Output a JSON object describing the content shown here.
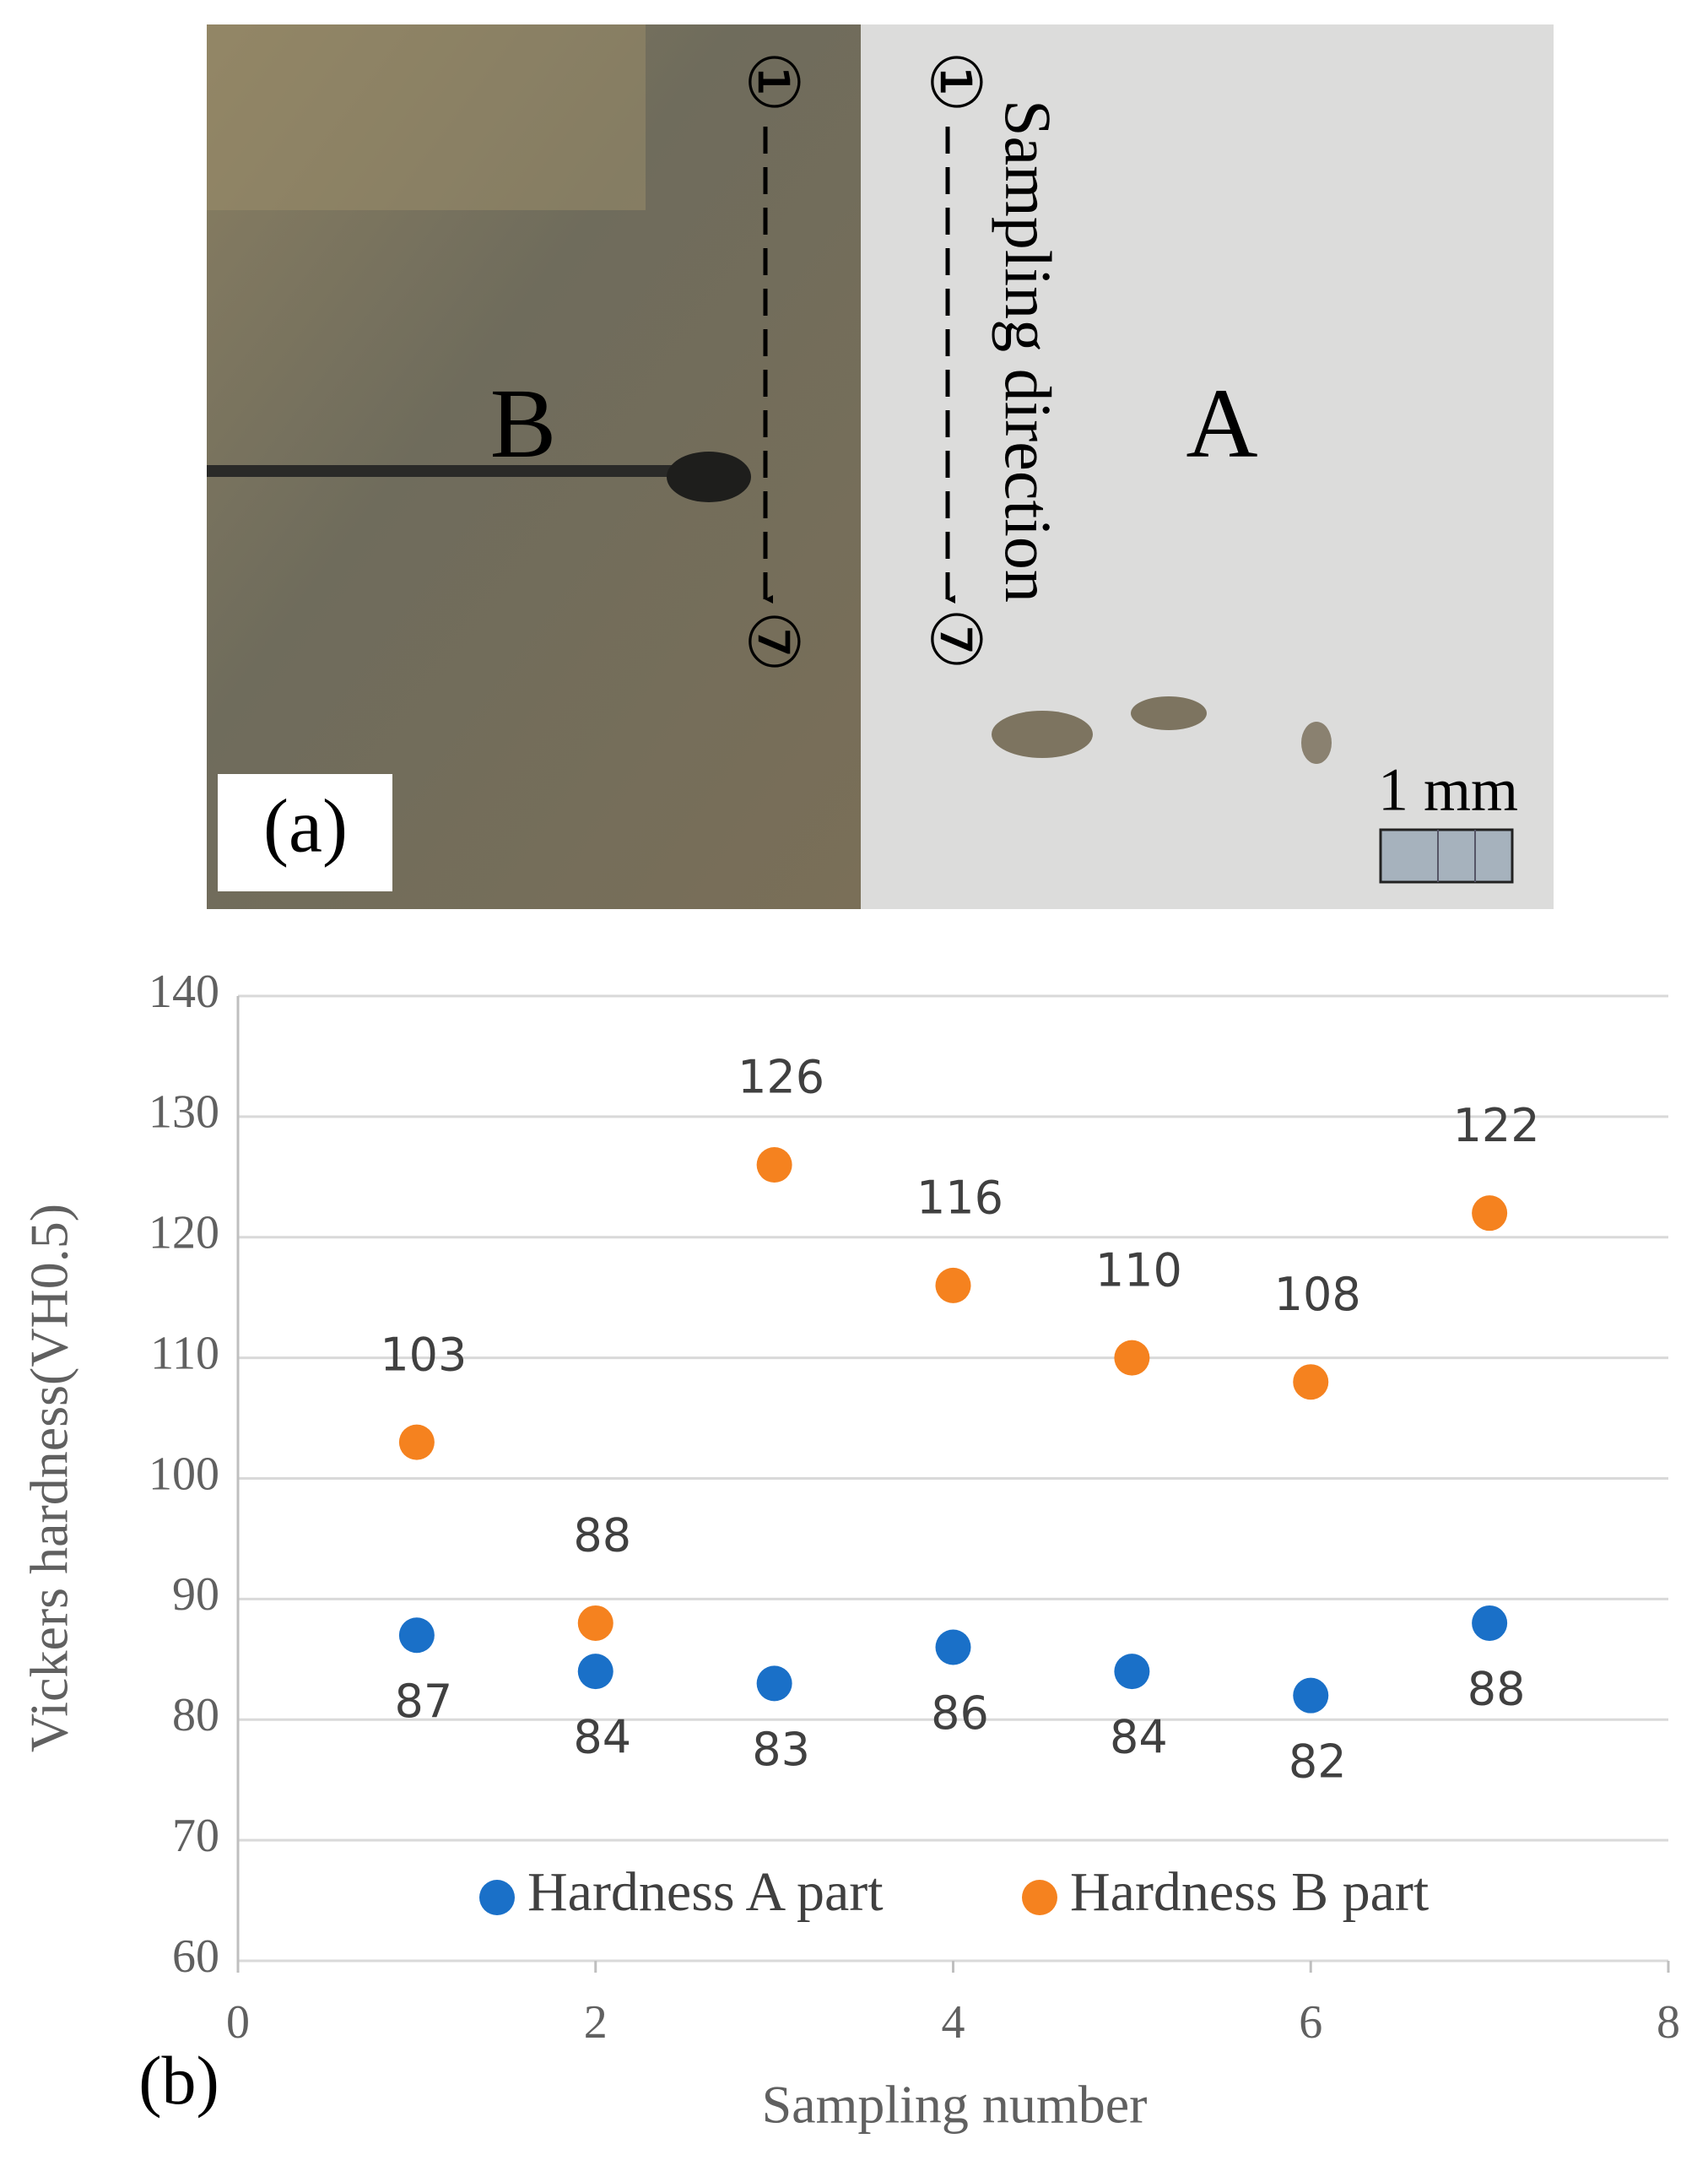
{
  "panel_a": {
    "label": "(a)",
    "regions": [
      "B",
      "A"
    ],
    "direction": "Sampling direction",
    "start_marker": "①",
    "end_marker": "⑦",
    "scale_bar": "1 mm"
  },
  "chart_data": {
    "type": "scatter",
    "panel_label": "(b)",
    "x_label": "Sampling number",
    "y_label": "Vickers hardness(VH0.5)",
    "x": [
      1,
      2,
      3,
      4,
      5,
      6,
      7
    ],
    "series": [
      {
        "name": "Hardness A part",
        "color": "#1a70c8",
        "values": [
          87,
          84,
          83,
          86,
          84,
          82,
          88
        ]
      },
      {
        "name": "Hardness B part",
        "color": "#f5821f",
        "values": [
          103,
          88,
          126,
          116,
          110,
          108,
          122
        ]
      }
    ],
    "xlim": [
      0,
      8
    ],
    "xticks": [
      0,
      2,
      4,
      6,
      8
    ],
    "ylim": [
      60,
      140
    ],
    "yticks": [
      60,
      70,
      80,
      90,
      100,
      110,
      120,
      130,
      140
    ],
    "grid": true,
    "legend": "bottom"
  }
}
